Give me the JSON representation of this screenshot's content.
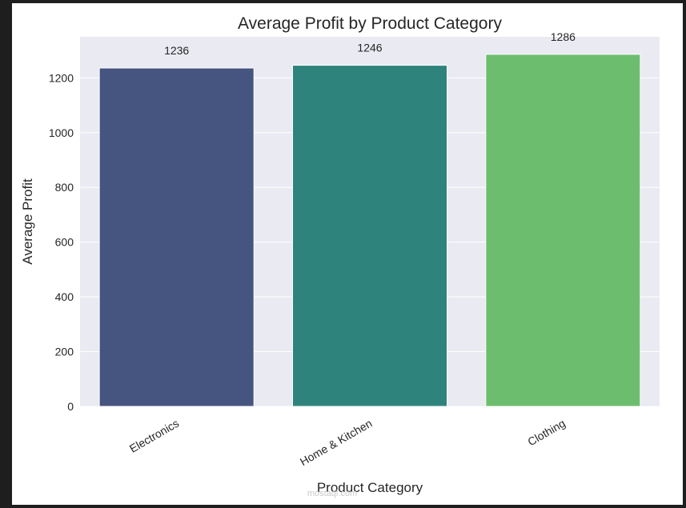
{
  "colors": {
    "plot_background": "#eaeaf2",
    "grid": "#ffffff",
    "text": "#262626",
    "frame": "#1e1e1e"
  },
  "watermark": {
    "text": "mostaql.com"
  },
  "chart_data": {
    "type": "bar",
    "title": "Average Profit by Product Category",
    "xlabel": "Product Category",
    "ylabel": "Average Profit",
    "categories": [
      "Electronics",
      "Home & Kitchen",
      "Clothing"
    ],
    "values": [
      1236,
      1246,
      1286
    ],
    "data_labels": [
      "1236",
      "1246",
      "1286"
    ],
    "bar_colors": [
      "#46557f",
      "#2e847c",
      "#6cbe6e"
    ],
    "yticks": [
      0,
      200,
      400,
      600,
      800,
      1000,
      1200
    ],
    "ylim": [
      0,
      1350
    ],
    "grid": true,
    "xtick_rotation": 30
  }
}
